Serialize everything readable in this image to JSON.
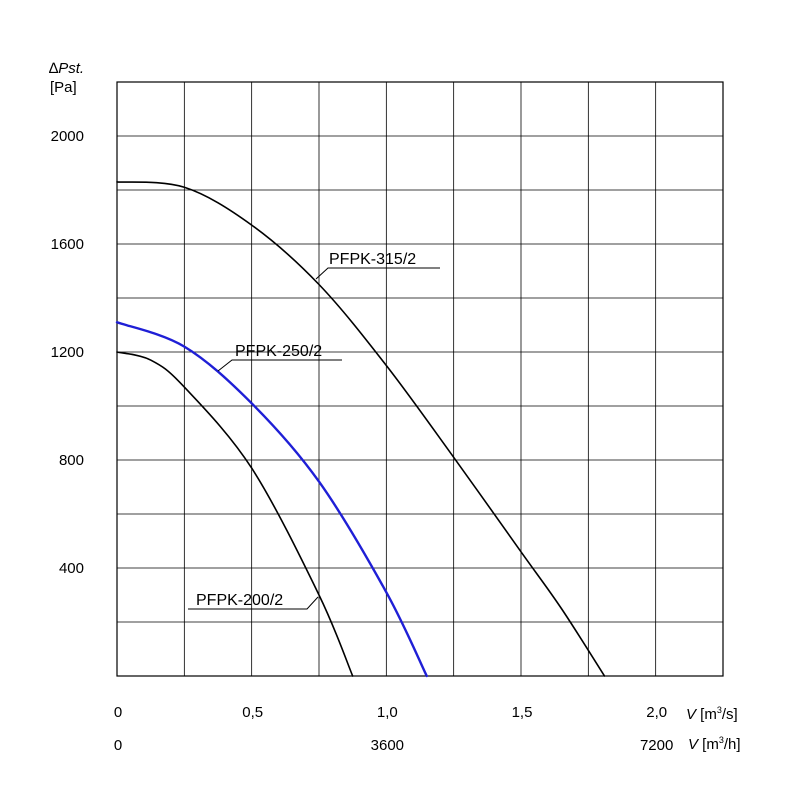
{
  "chart_data": {
    "type": "line",
    "ylabel": {
      "symbol": "∆",
      "name": "Pst.",
      "unit": "[Pa]"
    },
    "xlabel": {
      "symbol": "V",
      "unit_base": " [m",
      "unit_sup": "3",
      "unit_tail": "/s]"
    },
    "xlabel2": {
      "symbol": "V",
      "unit_base": " [m",
      "unit_sup": "3",
      "unit_tail": "/h]"
    },
    "xlim": [
      0,
      2.25
    ],
    "ylim": [
      0,
      2200
    ],
    "y_ticks": [
      {
        "value": 400,
        "label": "400"
      },
      {
        "value": 800,
        "label": "800"
      },
      {
        "value": 1200,
        "label": "1200"
      },
      {
        "value": 1600,
        "label": "1600"
      },
      {
        "value": 2000,
        "label": "2000"
      }
    ],
    "x_ticks": [
      {
        "value": 0,
        "label": "0"
      },
      {
        "value": 0.5,
        "label": "0,5"
      },
      {
        "value": 1.0,
        "label": "1,0"
      },
      {
        "value": 1.5,
        "label": "1,5"
      },
      {
        "value": 2.0,
        "label": "2,0"
      }
    ],
    "x_ticks2": [
      {
        "value": 0,
        "label": "0"
      },
      {
        "value": 1.0,
        "label": "3600"
      },
      {
        "value": 2.0,
        "label": "7200"
      }
    ],
    "grid": true,
    "series": [
      {
        "name": "PFPK-315/2",
        "color": "#000000",
        "points": [
          [
            0,
            1830
          ],
          [
            0.25,
            1810
          ],
          [
            0.5,
            1670
          ],
          [
            0.75,
            1450
          ],
          [
            1.0,
            1150
          ],
          [
            1.25,
            810
          ],
          [
            1.5,
            460
          ],
          [
            1.65,
            250
          ],
          [
            1.81,
            0
          ]
        ]
      },
      {
        "name": "PFPK-250/2",
        "color": "#1f1fd6",
        "points": [
          [
            0,
            1310
          ],
          [
            0.25,
            1220
          ],
          [
            0.5,
            1010
          ],
          [
            0.75,
            720
          ],
          [
            1.0,
            310
          ],
          [
            1.15,
            0
          ]
        ]
      },
      {
        "name": "PFPK-200/2",
        "color": "#000000",
        "points": [
          [
            0,
            1200
          ],
          [
            0.125,
            1170
          ],
          [
            0.25,
            1070
          ],
          [
            0.5,
            770
          ],
          [
            0.75,
            300
          ],
          [
            0.875,
            0
          ]
        ]
      }
    ]
  }
}
